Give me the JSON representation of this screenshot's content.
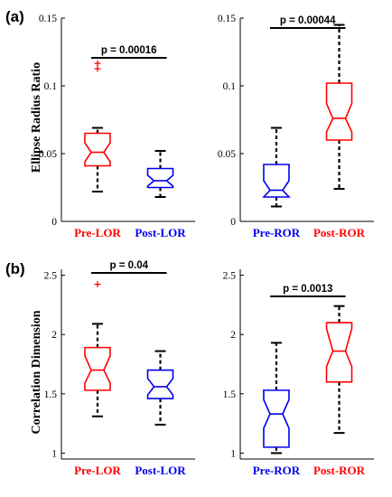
{
  "colors": {
    "red": "#ff0000",
    "blue": "#0000ee",
    "black": "#000000"
  },
  "panel_labels": [
    "(a)",
    "(b)"
  ],
  "chart_data": [
    {
      "type": "boxplot",
      "panel": "(a)",
      "ylabel": "Ellipse Radius Ratio",
      "ylim": [
        0,
        0.15
      ],
      "yticks": [
        0,
        0.05,
        0.1,
        0.15
      ],
      "yticklabels": [
        "0",
        "0.05",
        "0.1",
        "0.15"
      ],
      "categories": [
        "Pre-LOR",
        "Post-LOR"
      ],
      "colors": [
        "#ff0000",
        "#0000ee"
      ],
      "boxes": [
        {
          "whisker_low": 0.022,
          "q1": 0.041,
          "median": 0.051,
          "q3": 0.065,
          "whisker_high": 0.069,
          "notch_low": 0.044,
          "notch_high": 0.058,
          "outliers": [
            0.113,
            0.117
          ]
        },
        {
          "whisker_low": 0.018,
          "q1": 0.025,
          "median": 0.03,
          "q3": 0.039,
          "whisker_high": 0.052,
          "notch_low": 0.026,
          "notch_high": 0.034,
          "outliers": []
        }
      ],
      "pvalue_label": "p = 0.00016"
    },
    {
      "type": "boxplot",
      "panel": "(a)",
      "ylabel": "",
      "ylim": [
        0,
        0.15
      ],
      "yticks": [
        0,
        0.05,
        0.1,
        0.15
      ],
      "yticklabels": [
        "0",
        "0.05",
        "0.1",
        "0.15"
      ],
      "categories": [
        "Pre-ROR",
        "Post-ROR"
      ],
      "colors": [
        "#0000ee",
        "#ff0000"
      ],
      "boxes": [
        {
          "whisker_low": 0.011,
          "q1": 0.018,
          "median": 0.023,
          "q3": 0.042,
          "whisker_high": 0.069,
          "notch_low": 0.018,
          "notch_high": 0.03,
          "outliers": []
        },
        {
          "whisker_low": 0.024,
          "q1": 0.06,
          "median": 0.076,
          "q3": 0.102,
          "whisker_high": 0.145,
          "notch_low": 0.066,
          "notch_high": 0.087,
          "outliers": []
        }
      ],
      "pvalue_label": "p = 0.00044"
    },
    {
      "type": "boxplot",
      "panel": "(b)",
      "ylabel": "Correlation Dimension",
      "ylim": [
        0.95,
        2.55
      ],
      "yticks": [
        1,
        1.5,
        2,
        2.5
      ],
      "yticklabels": [
        "1",
        "1.5",
        "2",
        "2.5"
      ],
      "categories": [
        "Pre-LOR",
        "Post-LOR"
      ],
      "colors": [
        "#ff0000",
        "#0000ee"
      ],
      "boxes": [
        {
          "whisker_low": 1.31,
          "q1": 1.53,
          "median": 1.7,
          "q3": 1.89,
          "whisker_high": 2.09,
          "notch_low": 1.59,
          "notch_high": 1.82,
          "outliers": [
            2.43
          ]
        },
        {
          "whisker_low": 1.24,
          "q1": 1.46,
          "median": 1.56,
          "q3": 1.7,
          "whisker_high": 1.86,
          "notch_low": 1.49,
          "notch_high": 1.63,
          "outliers": []
        }
      ],
      "pvalue_label": "p = 0.04"
    },
    {
      "type": "boxplot",
      "panel": "(b)",
      "ylabel": "",
      "ylim": [
        0.95,
        2.55
      ],
      "yticks": [
        1,
        1.5,
        2,
        2.5
      ],
      "yticklabels": [
        "1",
        "1.5",
        "2",
        "2.5"
      ],
      "categories": [
        "Pre-ROR",
        "Post-ROR"
      ],
      "colors": [
        "#0000ee",
        "#ff0000"
      ],
      "boxes": [
        {
          "whisker_low": 1.0,
          "q1": 1.05,
          "median": 1.33,
          "q3": 1.53,
          "whisker_high": 1.93,
          "notch_low": 1.21,
          "notch_high": 1.45,
          "outliers": []
        },
        {
          "whisker_low": 1.17,
          "q1": 1.6,
          "median": 1.86,
          "q3": 2.1,
          "whisker_high": 2.24,
          "notch_low": 1.73,
          "notch_high": 2.05,
          "outliers": []
        }
      ],
      "pvalue_label": "p = 0.0013"
    }
  ]
}
